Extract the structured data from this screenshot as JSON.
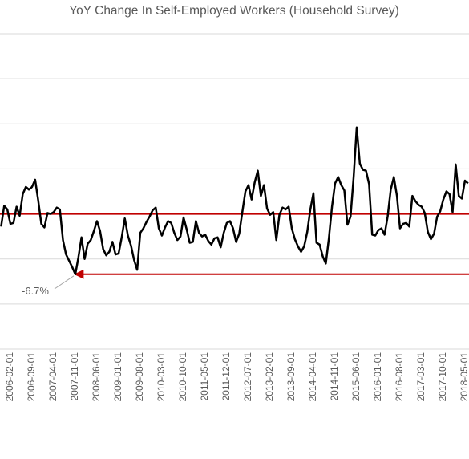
{
  "chart_data": {
    "type": "line",
    "title": "YoY Change In Self-Employed Workers (Household Survey)",
    "categories": [
      null,
      null,
      null,
      "2006-02-01",
      null,
      null,
      null,
      null,
      null,
      null,
      "2006-09-01",
      null,
      null,
      null,
      null,
      null,
      null,
      "2007-04-01",
      null,
      null,
      null,
      null,
      null,
      null,
      "2007-11-01",
      null,
      null,
      null,
      null,
      null,
      null,
      "2008-06-01",
      null,
      null,
      null,
      null,
      null,
      null,
      "2009-01-01",
      null,
      null,
      null,
      null,
      null,
      null,
      "2009-08-01",
      null,
      null,
      null,
      null,
      null,
      null,
      "2010-03-01",
      null,
      null,
      null,
      null,
      null,
      null,
      "2010-10-01",
      null,
      null,
      null,
      null,
      null,
      null,
      "2011-05-01",
      null,
      null,
      null,
      null,
      null,
      null,
      "2011-12-01",
      null,
      null,
      null,
      null,
      null,
      null,
      "2012-07-01",
      null,
      null,
      null,
      null,
      null,
      null,
      "2013-02-01",
      null,
      null,
      null,
      null,
      null,
      null,
      "2013-09-01",
      null,
      null,
      null,
      null,
      null,
      null,
      "2014-04-01",
      null,
      null,
      null,
      null,
      null,
      null,
      "2014-11-01",
      null,
      null,
      null,
      null,
      null,
      null,
      "2015-06-01",
      null,
      null,
      null,
      null,
      null,
      null,
      "2016-01-01",
      null,
      null,
      null,
      null,
      null,
      null,
      "2016-08-01",
      null,
      null,
      null,
      null,
      null,
      null,
      "2017-03-01",
      null,
      null,
      null,
      null,
      null,
      null,
      "2017-10-01",
      null,
      null,
      null,
      null,
      null,
      null,
      "2018-05-01",
      null
    ],
    "series": [
      {
        "color": "#000000",
        "values": [
          -1.4,
          0.9,
          0.5,
          -1.1,
          -1.0,
          0.8,
          -0.2,
          2.2,
          3.0,
          2.7,
          3.0,
          3.8,
          1.5,
          -1.1,
          -1.5,
          0.1,
          0.0,
          0.2,
          0.7,
          0.5,
          -2.9,
          -4.5,
          -5.2,
          -5.9,
          -6.7,
          -4.8,
          -2.6,
          -5.0,
          -3.3,
          -2.9,
          -1.9,
          -0.8,
          -1.9,
          -3.9,
          -4.6,
          -4.2,
          -3.1,
          -4.5,
          -4.4,
          -2.6,
          -0.5,
          -2.4,
          -3.5,
          -5.1,
          -6.2,
          -2.1,
          -1.6,
          -0.9,
          -0.3,
          0.4,
          0.7,
          -1.6,
          -2.4,
          -1.5,
          -0.8,
          -1.0,
          -2.1,
          -2.9,
          -2.5,
          -0.4,
          -1.7,
          -3.2,
          -3.1,
          -0.8,
          -2.1,
          -2.5,
          -2.3,
          -3.0,
          -3.4,
          -2.7,
          -2.6,
          -3.7,
          -2.1,
          -1.0,
          -0.8,
          -1.6,
          -3.1,
          -2.2,
          0.2,
          2.5,
          3.2,
          1.6,
          3.5,
          4.8,
          2.0,
          3.2,
          0.6,
          -0.1,
          0.2,
          -2.9,
          -0.1,
          0.7,
          0.5,
          0.8,
          -1.6,
          -2.8,
          -3.6,
          -4.2,
          -3.6,
          -2.0,
          0.5,
          2.3,
          -3.2,
          -3.4,
          -4.7,
          -5.5,
          -2.7,
          0.8,
          3.4,
          4.1,
          3.2,
          2.6,
          -1.2,
          -0.3,
          4.1,
          9.6,
          5.6,
          4.9,
          4.8,
          3.3,
          -2.3,
          -2.4,
          -1.8,
          -1.6,
          -2.3,
          -0.3,
          2.7,
          4.1,
          2.0,
          -1.6,
          -1.1,
          -1.0,
          -1.4,
          2.0,
          1.4,
          1.0,
          0.8,
          0.1,
          -2.0,
          -2.8,
          -2.2,
          -0.3,
          0.3,
          1.6,
          2.5,
          2.2,
          0.2,
          5.5,
          2.0,
          1.7,
          3.7,
          3.4
        ]
      }
    ],
    "ylim": [
      -15,
      20
    ],
    "yticks": [
      -15,
      -10,
      -5,
      0,
      5,
      10,
      15,
      20
    ],
    "grid": true,
    "reference_lines": [
      {
        "value": 0,
        "color": "#c00000"
      },
      {
        "value": -6.7,
        "color": "#c00000",
        "arrow": "left",
        "label": "-6.7%"
      }
    ]
  }
}
